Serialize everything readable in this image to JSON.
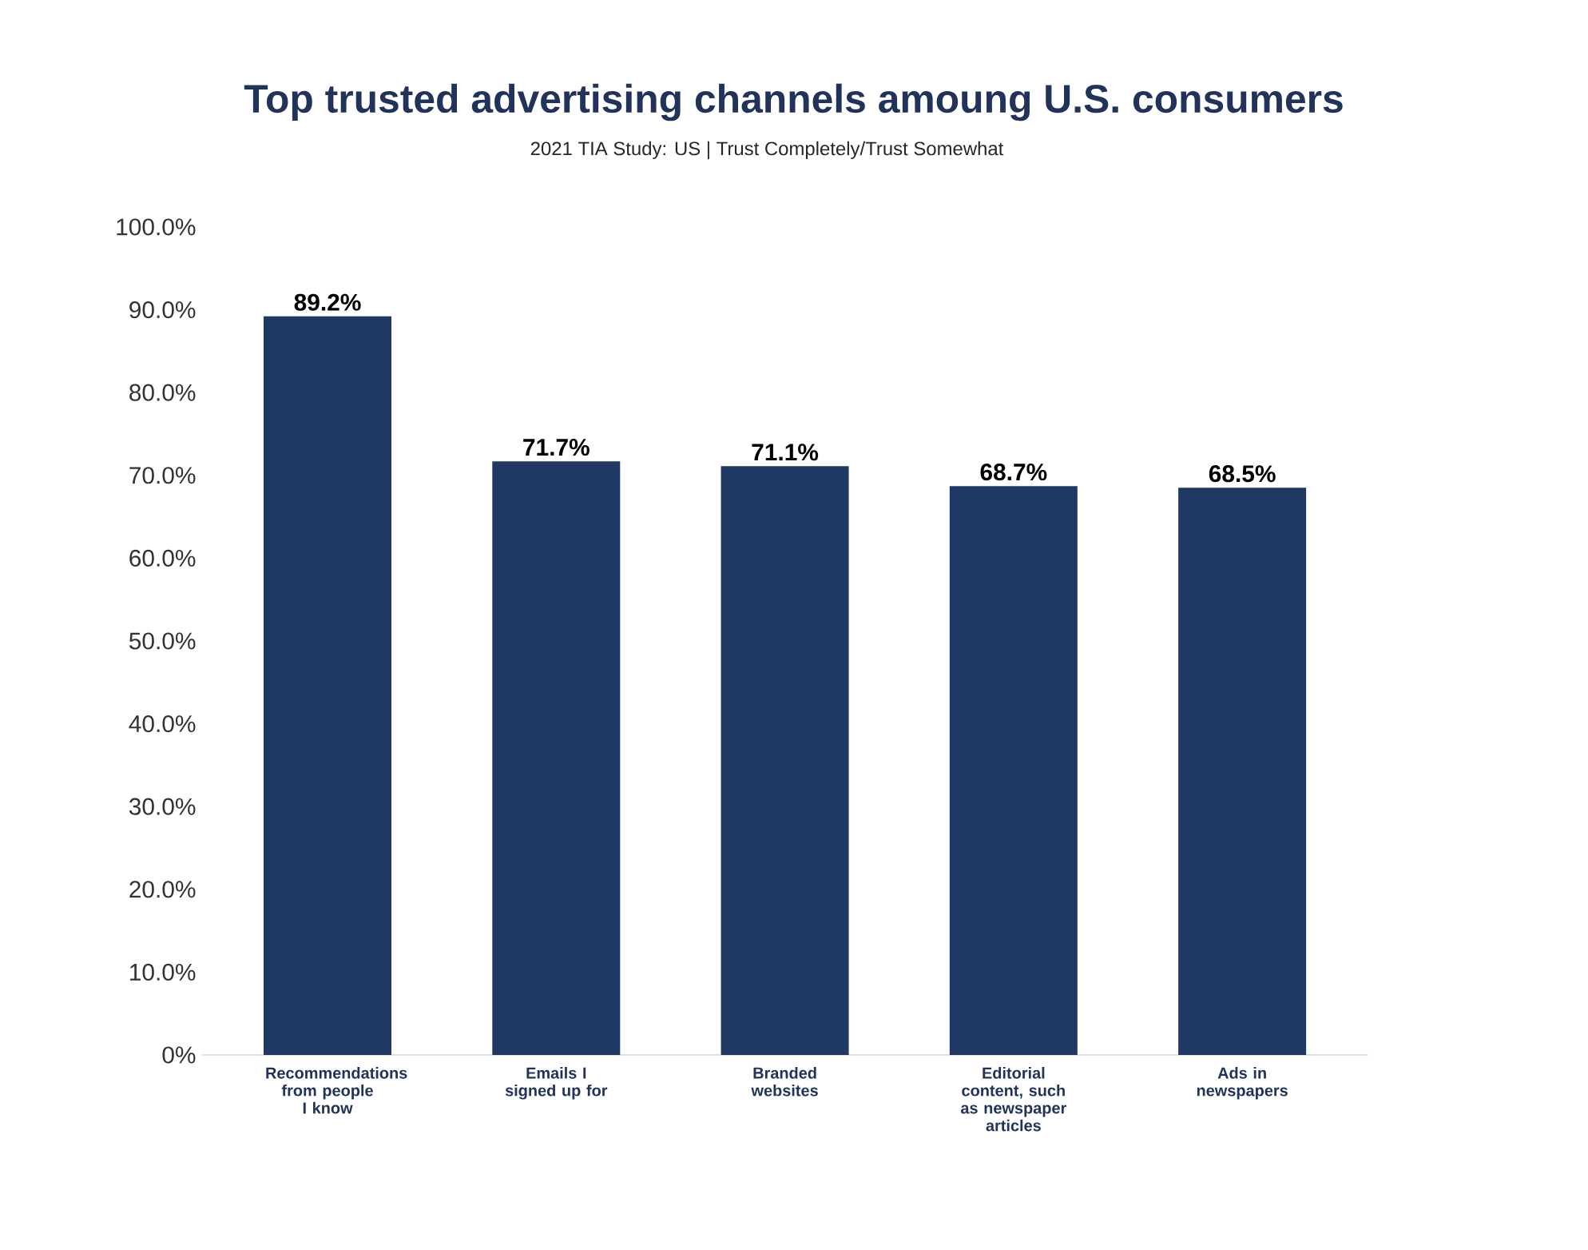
{
  "chart_data": {
    "type": "bar",
    "title": "Top trusted advertising channels amoung U.S. consumers",
    "subtitle": "2021 TIA Study: US | Trust Completely/Trust Somewhat",
    "categories": [
      "Recommendations from people I know",
      "Emails I signed up for",
      "Branded websites",
      "Editorial content, such as newspaper articles",
      "Ads in newspapers"
    ],
    "values": [
      89.2,
      71.7,
      71.1,
      68.7,
      68.5
    ],
    "value_labels": [
      "89.2%",
      "71.7%",
      "71.1%",
      "68.7%",
      "68.5%"
    ],
    "color": "#1f3864",
    "ylim": [
      0,
      100
    ],
    "yticks": [
      {
        "value": 0,
        "label": "0%"
      },
      {
        "value": 10,
        "label": "10.0%"
      },
      {
        "value": 20,
        "label": "20.0%"
      },
      {
        "value": 30,
        "label": "30.0%"
      },
      {
        "value": 40,
        "label": "40.0%"
      },
      {
        "value": 50,
        "label": "50.0%"
      },
      {
        "value": 60,
        "label": "60.0%"
      },
      {
        "value": 70,
        "label": "70.0%"
      },
      {
        "value": 80,
        "label": "80.0%"
      },
      {
        "value": 90,
        "label": "90.0%"
      },
      {
        "value": 100,
        "label": "100.0%"
      }
    ]
  }
}
